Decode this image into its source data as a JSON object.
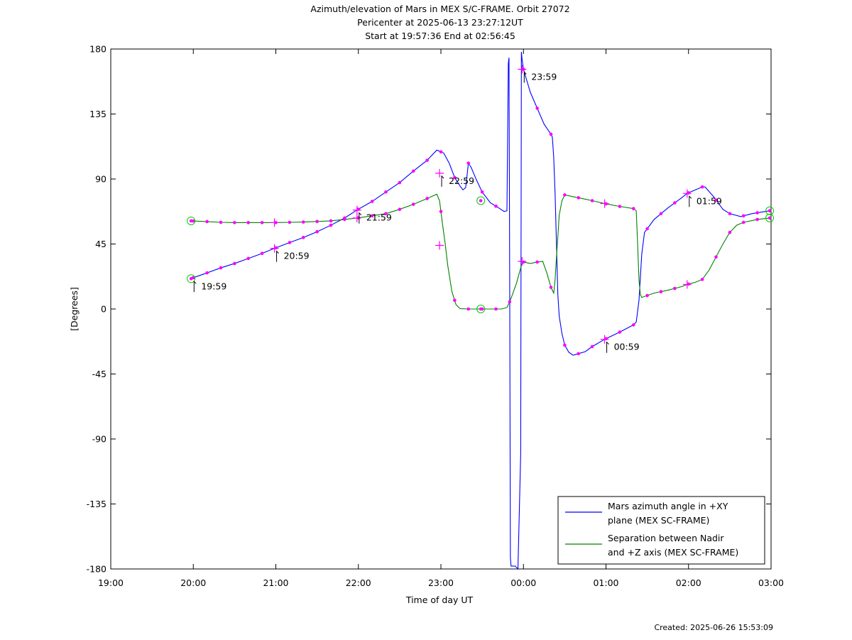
{
  "title_lines": [
    "Azimuth/elevation of Mars in MEX S/C-FRAME.  Orbit 27072",
    "Pericenter at 2025-06-13 23:27:12UT",
    "Start at 19:57:36 End at 02:56:45"
  ],
  "footer": {
    "created": "Created: 2025-06-26 15:53:09"
  },
  "chart_data": {
    "type": "line",
    "xlabel": "Time of day UT",
    "ylabel": "[Degrees]",
    "xlim": [
      -300,
      180
    ],
    "ylim": [
      -180,
      180
    ],
    "x_unit": "minutes relative to 00:00 UT",
    "xticks": [
      {
        "v": -300,
        "label": "19:00"
      },
      {
        "v": -240,
        "label": "20:00"
      },
      {
        "v": -180,
        "label": "21:00"
      },
      {
        "v": -120,
        "label": "22:00"
      },
      {
        "v": -60,
        "label": "23:00"
      },
      {
        "v": 0,
        "label": "00:00"
      },
      {
        "v": 60,
        "label": "01:00"
      },
      {
        "v": 120,
        "label": "02:00"
      },
      {
        "v": 180,
        "label": "03:00"
      }
    ],
    "yticks": [
      {
        "v": 180,
        "label": "180"
      },
      {
        "v": 135,
        "label": "135"
      },
      {
        "v": 90,
        "label": "90"
      },
      {
        "v": 45,
        "label": "45"
      },
      {
        "v": 0,
        "label": "0"
      },
      {
        "v": -45,
        "label": "-45"
      },
      {
        "v": -90,
        "label": "-90"
      },
      {
        "v": -135,
        "label": "-135"
      },
      {
        "v": -180,
        "label": "-180"
      }
    ],
    "grid": false,
    "legend_position": "bottom-right",
    "series": [
      {
        "name": "Mars azimuth angle in +XY plane (MEX SC-FRAME)",
        "legend_lines": [
          "Mars azimuth angle in +XY",
          "plane (MEX SC-FRAME)"
        ],
        "color": "#0000ff",
        "points": [
          [
            -242,
            21
          ],
          [
            -230,
            25
          ],
          [
            -220,
            28.5
          ],
          [
            -210,
            31.5
          ],
          [
            -200,
            35
          ],
          [
            -190,
            38.5
          ],
          [
            -181,
            42
          ],
          [
            -170,
            46
          ],
          [
            -160,
            49.5
          ],
          [
            -150,
            53.5
          ],
          [
            -140,
            58
          ],
          [
            -130,
            63
          ],
          [
            -121,
            68.5
          ],
          [
            -110,
            74.5
          ],
          [
            -100,
            81
          ],
          [
            -90,
            87.5
          ],
          [
            -80,
            95.5
          ],
          [
            -70,
            103
          ],
          [
            -63,
            110
          ],
          [
            -58,
            108
          ],
          [
            -54,
            101
          ],
          [
            -50,
            91
          ],
          [
            -46,
            85
          ],
          [
            -44,
            82.5
          ],
          [
            -42,
            84
          ],
          [
            -40,
            101
          ],
          [
            -38,
            98
          ],
          [
            -34,
            89
          ],
          [
            -30,
            81
          ],
          [
            -24,
            73.5
          ],
          [
            -18,
            70
          ],
          [
            -14,
            67.5
          ],
          [
            -12,
            68
          ],
          [
            -11,
            170
          ],
          [
            -10.5,
            174
          ],
          [
            -10,
            20
          ],
          [
            -9.5,
            -172
          ],
          [
            -9,
            -178
          ],
          [
            -6,
            -178
          ],
          [
            -4,
            -180
          ],
          [
            -2,
            -100
          ],
          [
            -1.5,
            178
          ],
          [
            -1,
            173
          ],
          [
            0,
            166
          ],
          [
            5,
            150
          ],
          [
            10,
            139
          ],
          [
            15,
            128
          ],
          [
            20,
            121
          ],
          [
            21,
            119
          ],
          [
            22,
            105
          ],
          [
            23,
            80
          ],
          [
            24,
            45
          ],
          [
            25,
            10
          ],
          [
            26,
            -5
          ],
          [
            28,
            -17
          ],
          [
            30,
            -25
          ],
          [
            33,
            -30
          ],
          [
            36,
            -32
          ],
          [
            38,
            -31.5
          ],
          [
            45,
            -29.5
          ],
          [
            50,
            -26
          ],
          [
            59,
            -21
          ],
          [
            70,
            -16
          ],
          [
            80,
            -11
          ],
          [
            82,
            -9
          ],
          [
            84,
            6
          ],
          [
            86,
            38
          ],
          [
            88,
            53
          ],
          [
            95,
            62
          ],
          [
            105,
            70
          ],
          [
            115,
            77
          ],
          [
            119,
            80
          ],
          [
            125,
            82.5
          ],
          [
            130,
            84.5
          ],
          [
            132,
            84.5
          ],
          [
            138,
            78
          ],
          [
            145,
            69
          ],
          [
            150,
            66
          ],
          [
            158,
            64
          ],
          [
            166,
            66
          ],
          [
            179,
            68
          ]
        ],
        "markers": [
          [
            -241.6,
            21,
            "circle"
          ],
          [
            -181,
            42,
            "plus"
          ],
          [
            -121,
            68.5,
            "plus"
          ],
          [
            -61,
            94,
            "plus"
          ],
          [
            -31,
            75,
            "circle"
          ],
          [
            -1,
            166,
            "plus"
          ],
          [
            59,
            -21,
            "plus"
          ],
          [
            119,
            80,
            "plus"
          ],
          [
            179,
            68,
            "circle"
          ]
        ],
        "annotations": [
          {
            "x": -241,
            "y": 21,
            "label": "19:59"
          },
          {
            "x": -181,
            "y": 42,
            "label": "20:59"
          },
          {
            "x": -121,
            "y": 68.5,
            "label": "21:59"
          },
          {
            "x": -61,
            "y": 94,
            "label": "22:59"
          },
          {
            "x": -1,
            "y": 166,
            "label": "23:59"
          },
          {
            "x": 59,
            "y": -21,
            "label": "00:59"
          },
          {
            "x": 119,
            "y": 80,
            "label": "01:59"
          }
        ]
      },
      {
        "name": "Separation between Nadir and +Z axis (MEX SC-FRAME)",
        "legend_lines": [
          "Separation between Nadir",
          "and +Z axis (MEX SC-FRAME)"
        ],
        "color": "#008000",
        "points": [
          [
            -242,
            61
          ],
          [
            -230,
            60.5
          ],
          [
            -220,
            60
          ],
          [
            -210,
            59.8
          ],
          [
            -200,
            59.8
          ],
          [
            -190,
            59.8
          ],
          [
            -181,
            59.8
          ],
          [
            -170,
            60
          ],
          [
            -160,
            60.2
          ],
          [
            -150,
            60.6
          ],
          [
            -140,
            61
          ],
          [
            -130,
            62
          ],
          [
            -121,
            63
          ],
          [
            -110,
            64.5
          ],
          [
            -100,
            66
          ],
          [
            -90,
            69
          ],
          [
            -80,
            72.5
          ],
          [
            -70,
            76.5
          ],
          [
            -63,
            79.5
          ],
          [
            -61,
            75
          ],
          [
            -59,
            60
          ],
          [
            -57,
            46
          ],
          [
            -55,
            30
          ],
          [
            -52,
            12
          ],
          [
            -49,
            3
          ],
          [
            -46,
            0.2
          ],
          [
            -40,
            0
          ],
          [
            -30,
            0
          ],
          [
            -20,
            0
          ],
          [
            -16,
            0
          ],
          [
            -12,
            1
          ],
          [
            -10,
            5
          ],
          [
            -8,
            10
          ],
          [
            -5,
            18
          ],
          [
            -3,
            25
          ],
          [
            -1.5,
            30
          ],
          [
            0,
            32.5
          ],
          [
            5,
            31.5
          ],
          [
            10,
            32.5
          ],
          [
            14,
            33
          ],
          [
            17,
            25
          ],
          [
            20,
            15
          ],
          [
            22,
            11
          ],
          [
            23,
            20
          ],
          [
            24,
            36
          ],
          [
            25,
            50
          ],
          [
            26,
            65
          ],
          [
            28,
            75
          ],
          [
            30,
            79
          ],
          [
            35,
            78
          ],
          [
            40,
            77
          ],
          [
            45,
            76
          ],
          [
            50,
            75
          ],
          [
            59,
            73
          ],
          [
            70,
            71
          ],
          [
            80,
            69.5
          ],
          [
            82,
            68
          ],
          [
            83,
            45
          ],
          [
            84,
            20
          ],
          [
            85,
            10
          ],
          [
            86,
            8
          ],
          [
            95,
            11
          ],
          [
            105,
            13
          ],
          [
            115,
            15.5
          ],
          [
            119,
            17
          ],
          [
            125,
            18.5
          ],
          [
            130,
            20.5
          ],
          [
            135,
            27
          ],
          [
            140,
            36
          ],
          [
            145,
            45
          ],
          [
            150,
            53
          ],
          [
            155,
            58
          ],
          [
            160,
            60
          ],
          [
            170,
            62
          ],
          [
            179,
            63
          ]
        ],
        "markers": [
          [
            -241.6,
            61,
            "circle"
          ],
          [
            -181,
            59.8,
            "plus"
          ],
          [
            -121,
            63,
            "plus"
          ],
          [
            -61,
            44,
            "plus"
          ],
          [
            -31,
            0,
            "circle"
          ],
          [
            -1,
            33,
            "plus"
          ],
          [
            59,
            73,
            "plus"
          ],
          [
            119,
            17,
            "plus"
          ],
          [
            179,
            63,
            "circle"
          ]
        ]
      }
    ],
    "dot_ticks_minutes": [
      -240,
      -230,
      -220,
      -210,
      -200,
      -190,
      -180,
      -170,
      -160,
      -150,
      -140,
      -130,
      -120,
      -110,
      -100,
      -90,
      -80,
      -70,
      -60,
      -50,
      -40,
      -30,
      -20,
      -10,
      0,
      10,
      20,
      30,
      40,
      50,
      60,
      70,
      80,
      90,
      100,
      110,
      120,
      130,
      140,
      150,
      160,
      170,
      180
    ]
  }
}
